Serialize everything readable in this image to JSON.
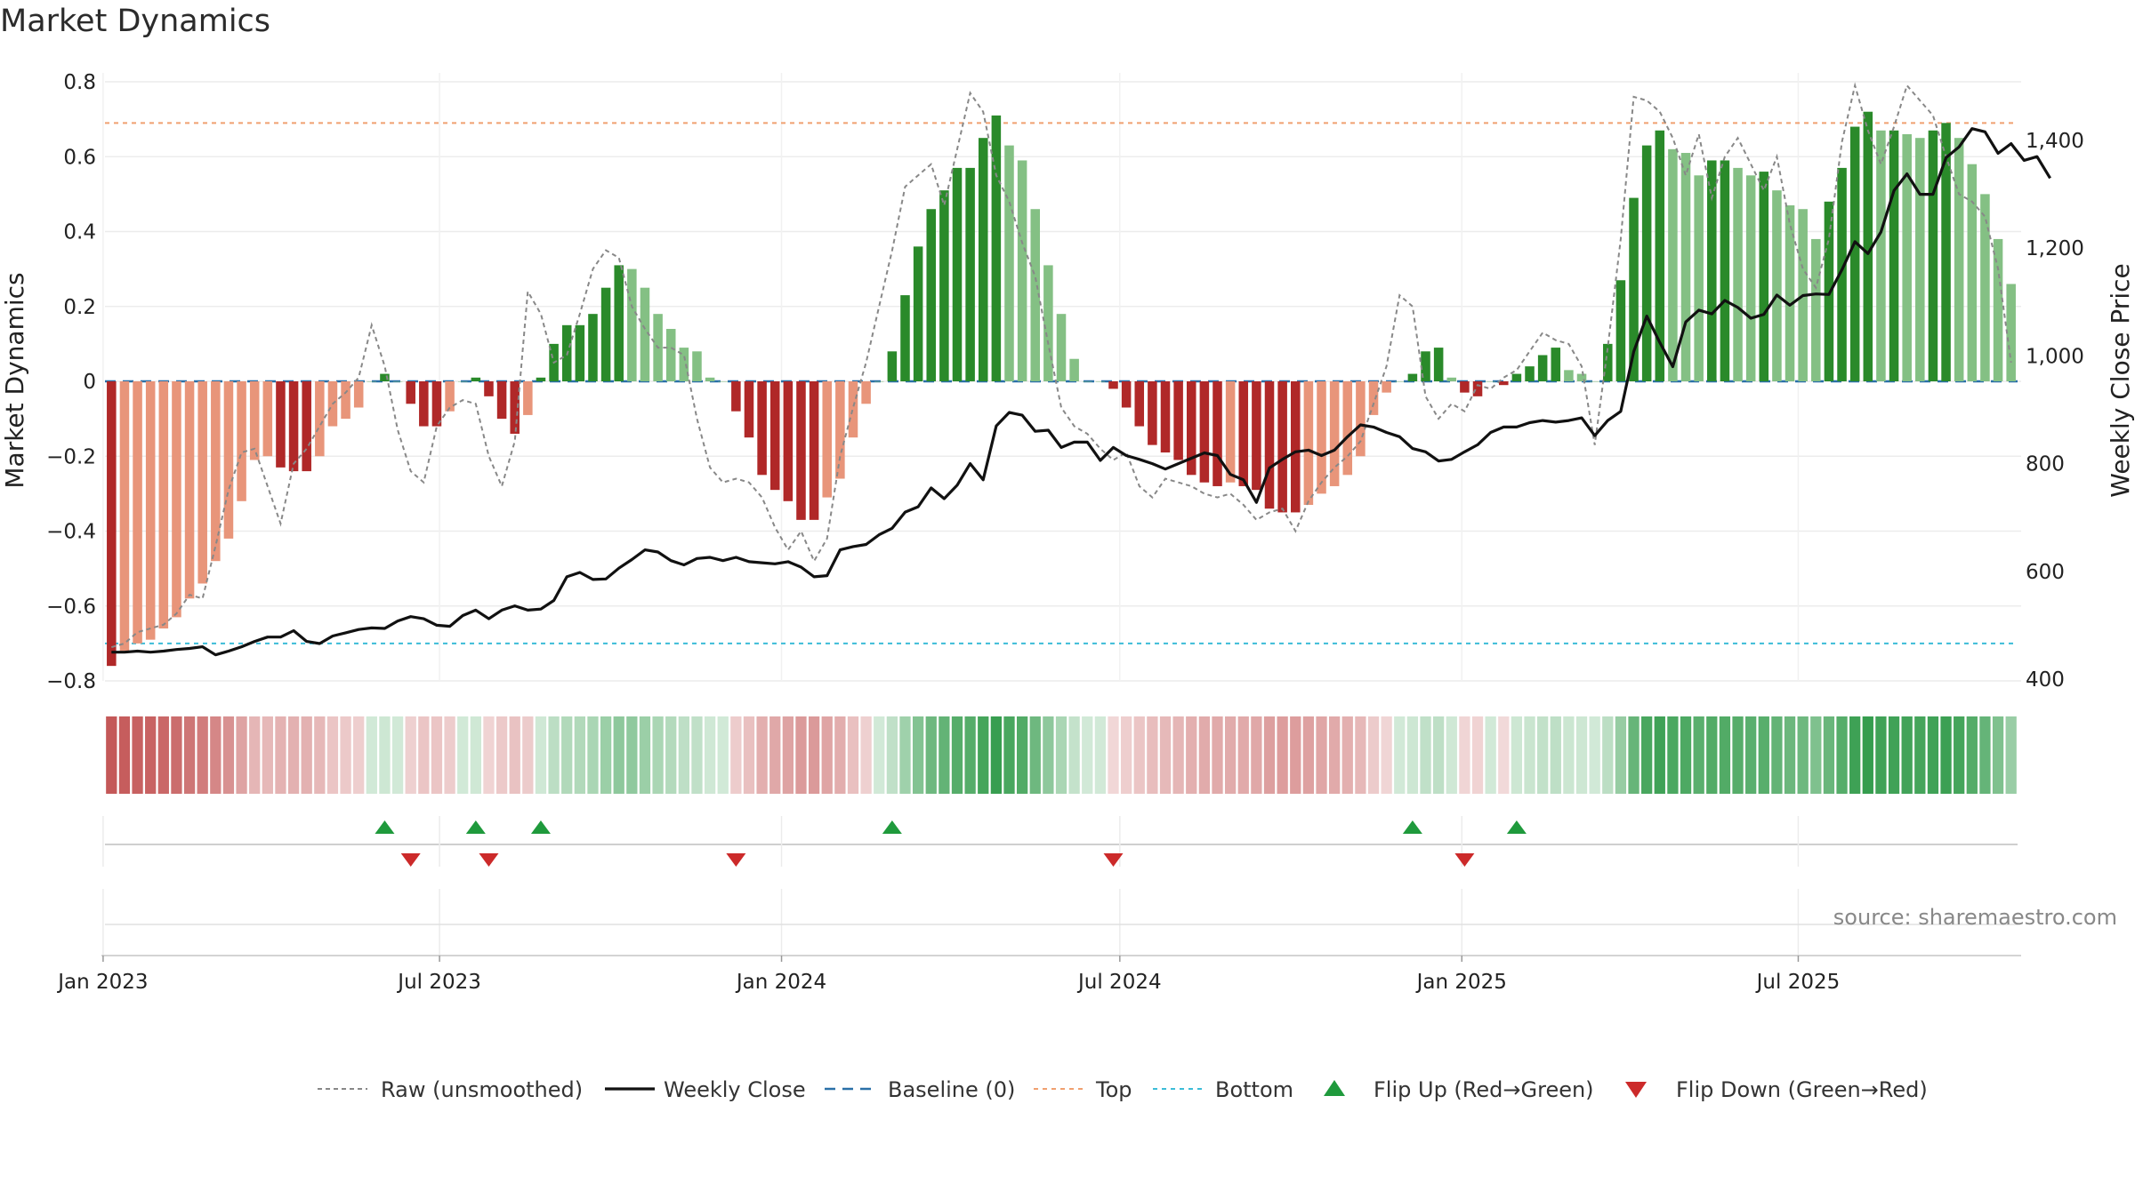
{
  "title": "Market Dynamics",
  "source": "source: sharemaestro.com",
  "chart_data": {
    "type": "bar",
    "start_date": "2023-01-02",
    "ylabel_left": "Market Dynamics",
    "ylabel_right": "Weekly Close Price",
    "ylim_left": [
      -0.8,
      0.8
    ],
    "ylim_right": [
      400,
      1450
    ],
    "left_ticks": [
      "0.8",
      "0.6",
      "0.4",
      "0.2",
      "0",
      "−0.2",
      "−0.4",
      "−0.6",
      "−0.8"
    ],
    "right_ticks": [
      "1,400",
      "1,200",
      "1,000",
      "800",
      "600",
      "400"
    ],
    "x_ticks": [
      "Jan 2023",
      "Jul 2023",
      "Jan 2024",
      "Jul 2024",
      "Jan 2025",
      "Jul 2025"
    ],
    "top_level": 0.69,
    "bottom_level": -0.7,
    "grid": true,
    "legend_position": "bottom",
    "legend": [
      "Raw (unsmoothed)",
      "Weekly Close",
      "Baseline (0)",
      "Top",
      "Bottom",
      "Flip Up (Red→Green)",
      "Flip Down (Green→Red)"
    ],
    "dynamics": [
      -0.76,
      -0.72,
      -0.7,
      -0.69,
      -0.66,
      -0.63,
      -0.58,
      -0.54,
      -0.48,
      -0.42,
      -0.32,
      -0.21,
      -0.2,
      -0.23,
      -0.24,
      -0.24,
      -0.2,
      -0.12,
      -0.1,
      -0.07,
      0.0,
      0.02,
      0.0,
      -0.06,
      -0.12,
      -0.12,
      -0.08,
      0.0,
      0.01,
      -0.04,
      -0.1,
      -0.14,
      -0.09,
      0.01,
      0.1,
      0.15,
      0.15,
      0.18,
      0.25,
      0.31,
      0.3,
      0.25,
      0.18,
      0.14,
      0.09,
      0.08,
      0.01,
      0.0,
      -0.08,
      -0.15,
      -0.25,
      -0.29,
      -0.32,
      -0.37,
      -0.37,
      -0.31,
      -0.26,
      -0.15,
      -0.06,
      0.0,
      0.08,
      0.23,
      0.36,
      0.46,
      0.51,
      0.57,
      0.57,
      0.65,
      0.71,
      0.63,
      0.59,
      0.46,
      0.31,
      0.18,
      0.06,
      0.0,
      0.0,
      -0.02,
      -0.07,
      -0.12,
      -0.17,
      -0.19,
      -0.21,
      -0.25,
      -0.27,
      -0.28,
      -0.27,
      -0.28,
      -0.29,
      -0.34,
      -0.35,
      -0.35,
      -0.33,
      -0.3,
      -0.28,
      -0.25,
      -0.2,
      -0.09,
      -0.03,
      0.0,
      0.02,
      0.08,
      0.09,
      0.01,
      -0.03,
      -0.04,
      0.0,
      -0.01,
      0.02,
      0.04,
      0.07,
      0.09,
      0.03,
      0.02,
      0.0,
      0.1,
      0.27,
      0.49,
      0.63,
      0.67,
      0.62,
      0.61,
      0.55,
      0.59,
      0.59,
      0.57,
      0.55,
      0.56,
      0.51,
      0.47,
      0.46,
      0.38,
      0.48,
      0.57,
      0.68,
      0.72,
      0.67,
      0.67,
      0.66,
      0.65,
      0.67,
      0.69,
      0.65,
      0.58,
      0.5,
      0.38,
      0.26
    ],
    "raw": [
      -0.71,
      -0.7,
      -0.67,
      -0.66,
      -0.65,
      -0.62,
      -0.57,
      -0.58,
      -0.44,
      -0.29,
      -0.19,
      -0.18,
      -0.28,
      -0.38,
      -0.22,
      -0.18,
      -0.12,
      -0.06,
      -0.03,
      0.01,
      0.15,
      0.04,
      -0.13,
      -0.24,
      -0.27,
      -0.12,
      -0.07,
      -0.05,
      -0.06,
      -0.2,
      -0.28,
      -0.16,
      0.24,
      0.18,
      0.05,
      0.07,
      0.18,
      0.3,
      0.35,
      0.33,
      0.2,
      0.14,
      0.09,
      0.09,
      0.07,
      -0.1,
      -0.23,
      -0.27,
      -0.26,
      -0.27,
      -0.31,
      -0.39,
      -0.45,
      -0.4,
      -0.48,
      -0.42,
      -0.2,
      -0.07,
      0.05,
      0.2,
      0.35,
      0.52,
      0.55,
      0.58,
      0.47,
      0.62,
      0.77,
      0.72,
      0.55,
      0.48,
      0.37,
      0.28,
      0.1,
      -0.07,
      -0.12,
      -0.14,
      -0.18,
      -0.21,
      -0.19,
      -0.28,
      -0.31,
      -0.26,
      -0.27,
      -0.28,
      -0.3,
      -0.31,
      -0.3,
      -0.33,
      -0.37,
      -0.35,
      -0.34,
      -0.4,
      -0.32,
      -0.27,
      -0.23,
      -0.2,
      -0.16,
      -0.06,
      0.04,
      0.23,
      0.2,
      -0.04,
      -0.1,
      -0.06,
      -0.08,
      -0.01,
      -0.02,
      0.01,
      0.03,
      0.08,
      0.13,
      0.11,
      0.1,
      0.04,
      -0.17,
      0.09,
      0.38,
      0.76,
      0.75,
      0.72,
      0.65,
      0.55,
      0.66,
      0.49,
      0.6,
      0.65,
      0.58,
      0.51,
      0.6,
      0.42,
      0.3,
      0.25,
      0.38,
      0.64,
      0.79,
      0.67,
      0.58,
      0.68,
      0.79,
      0.75,
      0.71,
      0.6,
      0.5,
      0.48,
      0.44,
      0.3,
      0.05
    ],
    "close": [
      450,
      450,
      452,
      450,
      452,
      455,
      457,
      460,
      445,
      452,
      460,
      470,
      478,
      478,
      490,
      470,
      466,
      480,
      486,
      492,
      495,
      494,
      508,
      516,
      512,
      500,
      498,
      518,
      528,
      512,
      528,
      536,
      528,
      530,
      546,
      590,
      598,
      585,
      586,
      606,
      622,
      640,
      636,
      620,
      612,
      624,
      626,
      620,
      626,
      618,
      616,
      614,
      618,
      608,
      590,
      592,
      640,
      646,
      650,
      668,
      680,
      710,
      720,
      755,
      735,
      760,
      800,
      770,
      870,
      895,
      890,
      860,
      862,
      830,
      840,
      840,
      806,
      830,
      815,
      808,
      800,
      790,
      800,
      810,
      820,
      815,
      780,
      770,
      728,
      792,
      808,
      822,
      825,
      815,
      825,
      850,
      872,
      868,
      858,
      850,
      828,
      822,
      805,
      808,
      822,
      835,
      858,
      868,
      868,
      876,
      880,
      877,
      880,
      885,
      852,
      880,
      897,
      1008,
      1074,
      1025,
      980,
      1063,
      1085,
      1078,
      1103,
      1090,
      1070,
      1077,
      1113,
      1094,
      1112,
      1115,
      1114,
      1160,
      1212,
      1190,
      1230,
      1307,
      1338,
      1300,
      1300,
      1368,
      1388,
      1422,
      1416,
      1376,
      1394,
      1363,
      1370,
      1330
    ]
  }
}
